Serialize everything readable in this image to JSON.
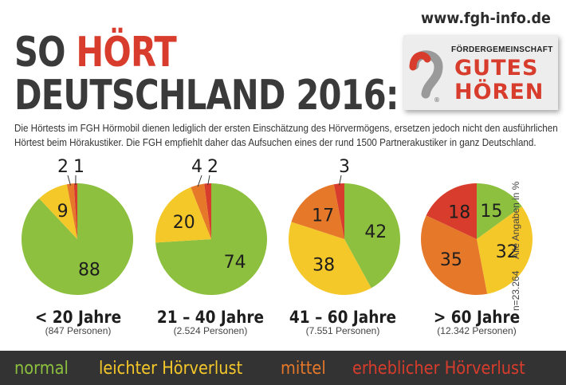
{
  "url": "www.fgh-info.de",
  "title": {
    "prefix": "SO",
    "highlight": "HÖRT",
    "line2": "DEUTSCHLAND 2016:"
  },
  "logo": {
    "org": "FÖRDERGEMEINSCHAFT",
    "word1": "GUTES",
    "word2": "HÖREN",
    "mark": "®"
  },
  "description": [
    "Die Hörtests im FGH Hörmobil dienen lediglich der ersten Einschätzung des Hörvermögens, ersetzen jedoch nicht den ausführlichen",
    "Hörtest beim Hörakustiker. Die FGH empfiehlt daher das Aufsuchen eines der rund 1500 Partnerakustiker in ganz Deutschland."
  ],
  "side_note": {
    "n": "n=23.264",
    "unit": "Alle Angaben in %"
  },
  "colors": {
    "normal": "#8cc03e",
    "leicht": "#f5c82a",
    "mittel": "#e6782a",
    "erheblich": "#d73c2c"
  },
  "chart_data": {
    "type": "pie",
    "categories": [
      "normal",
      "leichter Hörverlust",
      "mittel",
      "erheblicher Hörverlust"
    ],
    "pies": [
      {
        "label": "< 20 Jahre",
        "persons": "(847 Personen)",
        "values": [
          88,
          9,
          2,
          1
        ]
      },
      {
        "label": "21 – 40 Jahre",
        "persons": "(2.524 Personen)",
        "values": [
          74,
          20,
          4,
          2
        ]
      },
      {
        "label": "41 – 60 Jahre",
        "persons": "(7.551 Personen)",
        "values": [
          42,
          38,
          17,
          3
        ]
      },
      {
        "label": "> 60 Jahre",
        "persons": "(12.342 Personen)",
        "values": [
          15,
          32,
          35,
          18
        ]
      }
    ],
    "legend": [
      "normal",
      "leichter Hörverlust",
      "mittel",
      "erheblicher Hörverlust"
    ]
  }
}
